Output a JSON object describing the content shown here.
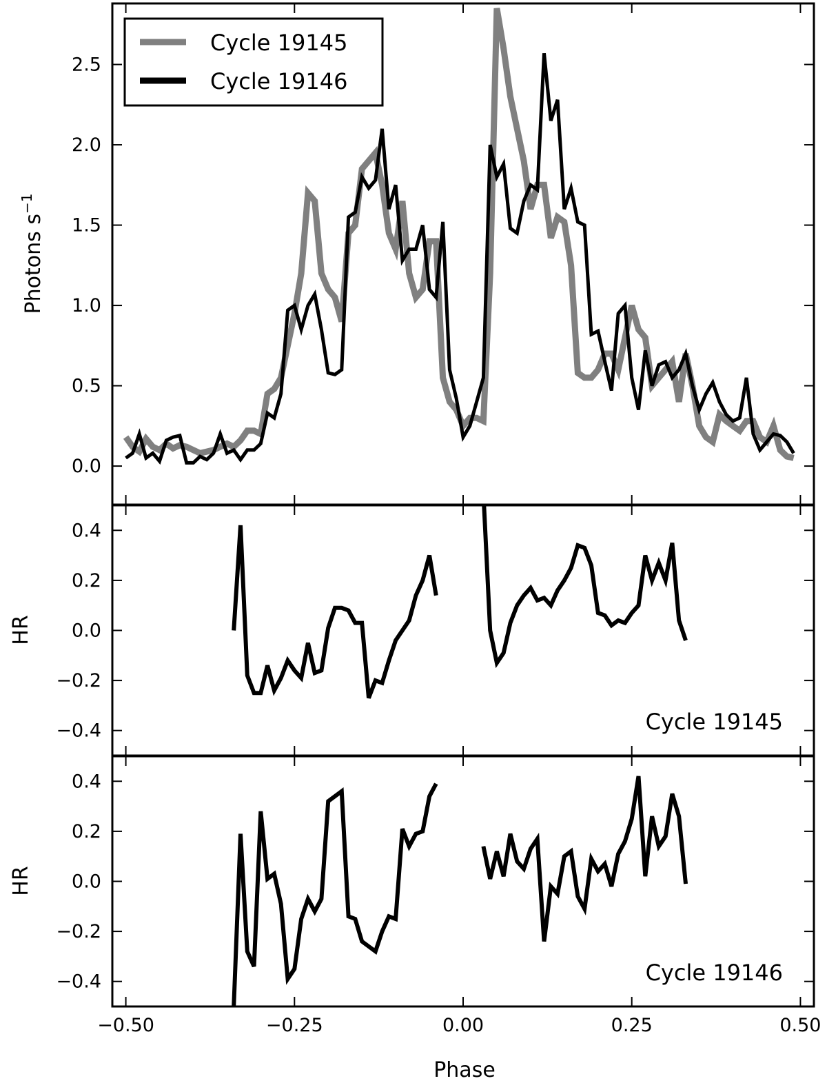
{
  "chart_data": [
    {
      "type": "line",
      "panel": "top",
      "ylabel": "Photons s",
      "ylabel_superscript": "−1",
      "xlim": [
        -0.52,
        0.52
      ],
      "ylim": [
        -0.24,
        2.88
      ],
      "yticks": [
        0.0,
        0.5,
        1.0,
        1.5,
        2.0,
        2.5
      ],
      "ytick_labels": [
        "0.0",
        "0.5",
        "1.0",
        "1.5",
        "2.0",
        "2.5"
      ],
      "xticks": [
        -0.5,
        -0.25,
        0.0,
        0.25,
        0.5
      ],
      "legend_position": "top-left",
      "series": [
        {
          "name": "Cycle 19145",
          "color": "#808080",
          "x": [
            -0.5,
            -0.49,
            -0.48,
            -0.47,
            -0.46,
            -0.45,
            -0.44,
            -0.43,
            -0.42,
            -0.41,
            -0.4,
            -0.39,
            -0.38,
            -0.37,
            -0.36,
            -0.35,
            -0.34,
            -0.33,
            -0.32,
            -0.31,
            -0.3,
            -0.29,
            -0.28,
            -0.27,
            -0.26,
            -0.25,
            -0.24,
            -0.23,
            -0.22,
            -0.21,
            -0.2,
            -0.19,
            -0.18,
            -0.17,
            -0.16,
            -0.15,
            -0.14,
            -0.13,
            -0.12,
            -0.11,
            -0.1,
            -0.09,
            -0.08,
            -0.07,
            -0.06,
            -0.05,
            -0.04,
            -0.03,
            -0.02,
            -0.01,
            0.0,
            0.01,
            0.02,
            0.03,
            0.04,
            0.05,
            0.06,
            0.07,
            0.08,
            0.09,
            0.1,
            0.11,
            0.12,
            0.13,
            0.14,
            0.15,
            0.16,
            0.17,
            0.18,
            0.19,
            0.2,
            0.21,
            0.22,
            0.23,
            0.24,
            0.25,
            0.26,
            0.27,
            0.28,
            0.29,
            0.3,
            0.31,
            0.32,
            0.33,
            0.34,
            0.35,
            0.36,
            0.37,
            0.38,
            0.39,
            0.4,
            0.41,
            0.42,
            0.43,
            0.44,
            0.45,
            0.46,
            0.47,
            0.48,
            0.49
          ],
          "values": [
            0.18,
            0.12,
            0.09,
            0.17,
            0.12,
            0.1,
            0.14,
            0.11,
            0.13,
            0.12,
            0.1,
            0.08,
            0.09,
            0.1,
            0.12,
            0.14,
            0.12,
            0.16,
            0.22,
            0.22,
            0.2,
            0.45,
            0.48,
            0.55,
            0.75,
            0.95,
            1.2,
            1.7,
            1.65,
            1.2,
            1.1,
            1.05,
            0.9,
            1.45,
            1.5,
            1.85,
            1.9,
            1.95,
            1.75,
            1.45,
            1.35,
            1.65,
            1.2,
            1.05,
            1.1,
            1.4,
            1.4,
            0.55,
            0.4,
            0.35,
            0.25,
            0.3,
            0.3,
            0.28,
            1.2,
            2.85,
            2.6,
            2.3,
            2.1,
            1.9,
            1.6,
            1.75,
            1.75,
            1.42,
            1.55,
            1.52,
            1.25,
            0.58,
            0.55,
            0.55,
            0.6,
            0.7,
            0.7,
            0.6,
            0.8,
            1.0,
            0.85,
            0.8,
            0.5,
            0.55,
            0.6,
            0.65,
            0.4,
            0.7,
            0.5,
            0.25,
            0.18,
            0.15,
            0.32,
            0.28,
            0.25,
            0.22,
            0.28,
            0.28,
            0.18,
            0.15,
            0.25,
            0.1,
            0.06,
            0.05
          ]
        },
        {
          "name": "Cycle 19146",
          "color": "#000000",
          "x": [
            -0.5,
            -0.49,
            -0.48,
            -0.47,
            -0.46,
            -0.45,
            -0.44,
            -0.43,
            -0.42,
            -0.41,
            -0.4,
            -0.39,
            -0.38,
            -0.37,
            -0.36,
            -0.35,
            -0.34,
            -0.33,
            -0.32,
            -0.31,
            -0.3,
            -0.29,
            -0.28,
            -0.27,
            -0.26,
            -0.25,
            -0.24,
            -0.23,
            -0.22,
            -0.21,
            -0.2,
            -0.19,
            -0.18,
            -0.17,
            -0.16,
            -0.15,
            -0.14,
            -0.13,
            -0.12,
            -0.11,
            -0.1,
            -0.09,
            -0.08,
            -0.07,
            -0.06,
            -0.05,
            -0.04,
            -0.03,
            -0.02,
            -0.01,
            0.0,
            0.01,
            0.02,
            0.03,
            0.04,
            0.05,
            0.06,
            0.07,
            0.08,
            0.09,
            0.1,
            0.11,
            0.12,
            0.13,
            0.14,
            0.15,
            0.16,
            0.17,
            0.18,
            0.19,
            0.2,
            0.21,
            0.22,
            0.23,
            0.24,
            0.25,
            0.26,
            0.27,
            0.28,
            0.29,
            0.3,
            0.31,
            0.32,
            0.33,
            0.34,
            0.35,
            0.36,
            0.37,
            0.38,
            0.39,
            0.4,
            0.41,
            0.42,
            0.43,
            0.44,
            0.45,
            0.46,
            0.47,
            0.48,
            0.49
          ],
          "values": [
            0.05,
            0.08,
            0.2,
            0.05,
            0.08,
            0.03,
            0.16,
            0.18,
            0.19,
            0.02,
            0.02,
            0.06,
            0.04,
            0.08,
            0.2,
            0.08,
            0.1,
            0.04,
            0.1,
            0.1,
            0.14,
            0.33,
            0.3,
            0.45,
            0.97,
            1.0,
            0.85,
            1.0,
            1.07,
            0.85,
            0.58,
            0.57,
            0.6,
            1.55,
            1.58,
            1.8,
            1.73,
            1.78,
            2.1,
            1.6,
            1.75,
            1.28,
            1.35,
            1.35,
            1.5,
            1.1,
            1.05,
            1.52,
            0.6,
            0.42,
            0.18,
            0.25,
            0.4,
            0.55,
            2.0,
            1.8,
            1.88,
            1.48,
            1.45,
            1.65,
            1.75,
            1.72,
            2.57,
            2.15,
            2.28,
            1.6,
            1.73,
            1.52,
            1.5,
            0.82,
            0.84,
            0.65,
            0.47,
            0.95,
            1.0,
            0.55,
            0.35,
            0.72,
            0.5,
            0.63,
            0.65,
            0.55,
            0.6,
            0.7,
            0.5,
            0.35,
            0.45,
            0.52,
            0.4,
            0.32,
            0.28,
            0.3,
            0.55,
            0.2,
            0.1,
            0.15,
            0.2,
            0.19,
            0.15,
            0.08
          ]
        }
      ]
    },
    {
      "type": "line",
      "panel": "middle",
      "ylabel": "HR",
      "annotation": "Cycle 19145",
      "xlim": [
        -0.52,
        0.52
      ],
      "ylim": [
        -0.5,
        0.5
      ],
      "yticks": [
        -0.4,
        -0.2,
        0.0,
        0.2,
        0.4
      ],
      "ytick_labels": [
        "−0.4",
        "−0.2",
        "0.0",
        "0.2",
        "0.4"
      ],
      "xticks": [
        -0.5,
        -0.25,
        0.0,
        0.25,
        0.5
      ],
      "series": [
        {
          "color": "#000000",
          "segments": [
            {
              "x": [
                -0.34,
                -0.33,
                -0.32,
                -0.31,
                -0.3,
                -0.29,
                -0.28,
                -0.27,
                -0.26,
                -0.25,
                -0.24,
                -0.23,
                -0.22,
                -0.21,
                -0.2,
                -0.19,
                -0.18,
                -0.17,
                -0.16,
                -0.15,
                -0.14,
                -0.13,
                -0.12,
                -0.11,
                -0.1,
                -0.09,
                -0.08,
                -0.07,
                -0.06,
                -0.05,
                -0.04
              ],
              "values": [
                0.0,
                0.42,
                -0.18,
                -0.25,
                -0.25,
                -0.14,
                -0.24,
                -0.19,
                -0.12,
                -0.16,
                -0.19,
                -0.05,
                -0.17,
                -0.16,
                0.01,
                0.09,
                0.09,
                0.08,
                0.03,
                0.03,
                -0.27,
                -0.2,
                -0.21,
                -0.12,
                -0.04,
                0.0,
                0.04,
                0.14,
                0.2,
                0.3,
                0.14
              ]
            },
            {
              "x": [
                0.03,
                0.04,
                0.05,
                0.06,
                0.07,
                0.08,
                0.09,
                0.1,
                0.11,
                0.12,
                0.13,
                0.14,
                0.15,
                0.16,
                0.17,
                0.18,
                0.19,
                0.2,
                0.21,
                0.22,
                0.23,
                0.24,
                0.25,
                0.26,
                0.27,
                0.28,
                0.29,
                0.3,
                0.31,
                0.32,
                0.33
              ],
              "values": [
                0.55,
                0.0,
                -0.13,
                -0.09,
                0.03,
                0.1,
                0.14,
                0.17,
                0.12,
                0.13,
                0.1,
                0.16,
                0.2,
                0.25,
                0.34,
                0.33,
                0.26,
                0.07,
                0.06,
                0.02,
                0.04,
                0.03,
                0.07,
                0.1,
                0.3,
                0.2,
                0.27,
                0.2,
                0.35,
                0.04,
                -0.04
              ]
            }
          ]
        }
      ]
    },
    {
      "type": "line",
      "panel": "bottom",
      "ylabel": "HR",
      "xlabel": "Phase",
      "annotation": "Cycle 19146",
      "xlim": [
        -0.52,
        0.52
      ],
      "ylim": [
        -0.5,
        0.5
      ],
      "yticks": [
        -0.4,
        -0.2,
        0.0,
        0.2,
        0.4
      ],
      "ytick_labels": [
        "−0.4",
        "−0.2",
        "0.0",
        "0.2",
        "0.4"
      ],
      "xticks": [
        -0.5,
        -0.25,
        0.0,
        0.25,
        0.5
      ],
      "xtick_labels": [
        "−0.50",
        "−0.25",
        "0.00",
        "0.25",
        "0.50"
      ],
      "series": [
        {
          "color": "#000000",
          "segments": [
            {
              "x": [
                -0.34,
                -0.33,
                -0.32,
                -0.31,
                -0.3,
                -0.29,
                -0.28,
                -0.27,
                -0.26,
                -0.25,
                -0.24,
                -0.23,
                -0.22,
                -0.21,
                -0.2,
                -0.19,
                -0.18,
                -0.17,
                -0.16,
                -0.15,
                -0.14,
                -0.13,
                -0.12,
                -0.11,
                -0.1,
                -0.09,
                -0.08,
                -0.07,
                -0.06,
                -0.05,
                -0.04
              ],
              "values": [
                -0.5,
                0.19,
                -0.28,
                -0.34,
                0.28,
                0.01,
                0.03,
                -0.09,
                -0.39,
                -0.35,
                -0.15,
                -0.07,
                -0.12,
                -0.07,
                0.32,
                0.34,
                0.36,
                -0.14,
                -0.15,
                -0.24,
                -0.26,
                -0.28,
                -0.2,
                -0.14,
                -0.15,
                0.21,
                0.14,
                0.19,
                0.2,
                0.34,
                0.39
              ]
            },
            {
              "x": [
                0.03,
                0.04,
                0.05,
                0.06,
                0.07,
                0.08,
                0.09,
                0.1,
                0.11,
                0.12,
                0.13,
                0.14,
                0.15,
                0.16,
                0.17,
                0.18,
                0.19,
                0.2,
                0.21,
                0.22,
                0.23,
                0.24,
                0.25,
                0.26,
                0.27,
                0.28,
                0.29,
                0.3,
                0.31,
                0.32,
                0.33
              ],
              "values": [
                0.14,
                0.01,
                0.12,
                0.02,
                0.19,
                0.08,
                0.05,
                0.13,
                0.17,
                -0.24,
                -0.02,
                -0.05,
                0.1,
                0.12,
                -0.06,
                -0.11,
                0.09,
                0.04,
                0.07,
                -0.02,
                0.11,
                0.16,
                0.25,
                0.42,
                0.02,
                0.26,
                0.14,
                0.18,
                0.35,
                0.26,
                -0.01
              ]
            }
          ]
        }
      ]
    }
  ]
}
